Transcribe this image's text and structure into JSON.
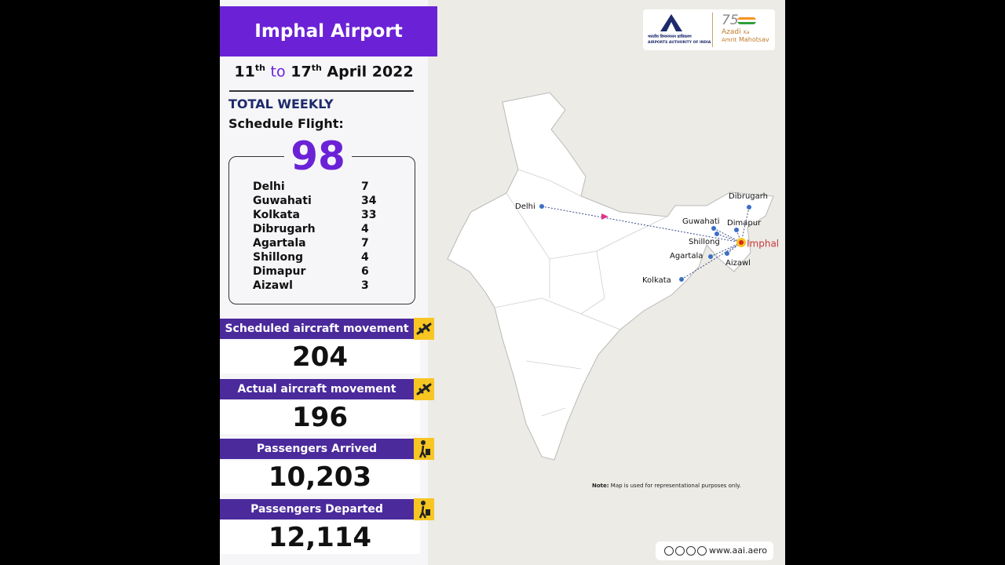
{
  "header": {
    "title": "Imphal Airport",
    "dates": {
      "start_day": "11",
      "start_sup": "th",
      "to": "to",
      "end_day": "17",
      "end_sup": "th",
      "month_year": "April 2022"
    }
  },
  "summary": {
    "heading": "TOTAL WEEKLY",
    "subheading": "Schedule Flight:",
    "total": "98",
    "routes": [
      {
        "city": "Delhi",
        "flights": "7"
      },
      {
        "city": "Guwahati",
        "flights": "34"
      },
      {
        "city": "Kolkata",
        "flights": "33"
      },
      {
        "city": "Dibrugarh",
        "flights": "4"
      },
      {
        "city": "Agartala",
        "flights": "7"
      },
      {
        "city": "Shillong",
        "flights": "4"
      },
      {
        "city": "Dimapur",
        "flights": "6"
      },
      {
        "city": "Aizawl",
        "flights": "3"
      }
    ]
  },
  "stats": [
    {
      "label": "Scheduled aircraft movement",
      "value": "204"
    },
    {
      "label": "Actual aircraft movement",
      "value": "196"
    },
    {
      "label": "Passengers Arrived",
      "value": "10,203"
    },
    {
      "label": "Passengers Departed",
      "value": "12,114"
    }
  ],
  "map": {
    "cities": [
      "Delhi",
      "Dibrugarh",
      "Guwahati",
      "Dimapur",
      "Shillong",
      "Agartala",
      "Aizawl",
      "Kolkata"
    ],
    "hub": "Imphal",
    "note_label": "Note:",
    "note": "Map is used for representational purposes only."
  },
  "logos": {
    "aai_hindi": "भारतीय विमानपत्तन प्राधिकरण",
    "aai_english": "AIRPORTS AUTHORITY OF INDIA",
    "azadi_number": "75",
    "azadi": "Azadi",
    "ka": "Ka",
    "amrit": "Amrit",
    "mahotsav": "Mahotsav"
  },
  "footer": {
    "website": "www.aai.aero"
  }
}
